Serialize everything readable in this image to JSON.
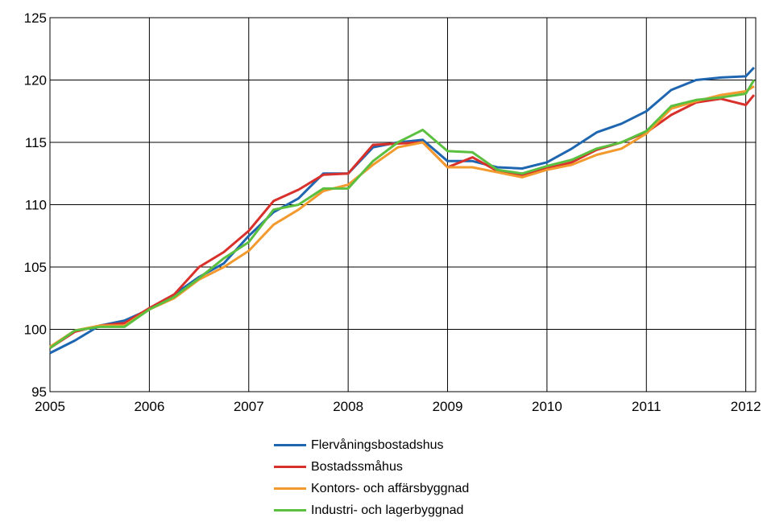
{
  "chart_data": {
    "type": "line",
    "title": "",
    "xlabel": "",
    "ylabel": "",
    "xlim": [
      2005,
      2012.1
    ],
    "ylim": [
      95,
      125
    ],
    "x_ticks": [
      "2005",
      "2006",
      "2007",
      "2008",
      "2009",
      "2010",
      "2011",
      "2012"
    ],
    "y_ticks": [
      "95",
      "100",
      "105",
      "110",
      "115",
      "120",
      "125"
    ],
    "grid": true,
    "legend_position": "bottom",
    "series": [
      {
        "name": "Flervåningsbostadshus",
        "color": "#1f66b0",
        "points": [
          [
            2005.0,
            98.1
          ],
          [
            2005.25,
            99.1
          ],
          [
            2005.5,
            100.3
          ],
          [
            2005.75,
            100.7
          ],
          [
            2006.0,
            101.6
          ],
          [
            2006.25,
            102.8
          ],
          [
            2006.5,
            104.2
          ],
          [
            2006.75,
            105.3
          ],
          [
            2007.0,
            107.5
          ],
          [
            2007.25,
            109.4
          ],
          [
            2007.5,
            110.5
          ],
          [
            2007.75,
            112.5
          ],
          [
            2008.0,
            112.5
          ],
          [
            2008.25,
            114.6
          ],
          [
            2008.5,
            115.0
          ],
          [
            2008.75,
            115.2
          ],
          [
            2009.0,
            113.5
          ],
          [
            2009.25,
            113.5
          ],
          [
            2009.5,
            113.0
          ],
          [
            2009.75,
            112.9
          ],
          [
            2010.0,
            113.4
          ],
          [
            2010.25,
            114.5
          ],
          [
            2010.5,
            115.8
          ],
          [
            2010.75,
            116.5
          ],
          [
            2011.0,
            117.5
          ],
          [
            2011.25,
            119.2
          ],
          [
            2011.5,
            120.0
          ],
          [
            2011.75,
            120.2
          ],
          [
            2012.0,
            120.3
          ],
          [
            2012.083,
            121.0
          ]
        ]
      },
      {
        "name": "Bostadssmåhus",
        "color": "#d8312c",
        "points": [
          [
            2005.0,
            98.5
          ],
          [
            2005.25,
            99.8
          ],
          [
            2005.5,
            100.3
          ],
          [
            2005.75,
            100.5
          ],
          [
            2006.0,
            101.7
          ],
          [
            2006.25,
            102.8
          ],
          [
            2006.5,
            105.0
          ],
          [
            2006.75,
            106.2
          ],
          [
            2007.0,
            107.9
          ],
          [
            2007.25,
            110.3
          ],
          [
            2007.5,
            111.2
          ],
          [
            2007.75,
            112.4
          ],
          [
            2008.0,
            112.5
          ],
          [
            2008.25,
            114.8
          ],
          [
            2008.5,
            114.9
          ],
          [
            2008.75,
            115.0
          ],
          [
            2009.0,
            113.0
          ],
          [
            2009.25,
            113.8
          ],
          [
            2009.5,
            112.7
          ],
          [
            2009.75,
            112.4
          ],
          [
            2010.0,
            112.9
          ],
          [
            2010.25,
            113.4
          ],
          [
            2010.5,
            114.4
          ],
          [
            2010.75,
            115.0
          ],
          [
            2011.0,
            115.8
          ],
          [
            2011.25,
            117.2
          ],
          [
            2011.5,
            118.2
          ],
          [
            2011.75,
            118.5
          ],
          [
            2012.0,
            118.0
          ],
          [
            2012.083,
            118.8
          ]
        ]
      },
      {
        "name": "Kontors- och affärsbyggnad",
        "color": "#f39a2e",
        "points": [
          [
            2005.0,
            98.6
          ],
          [
            2005.25,
            99.9
          ],
          [
            2005.5,
            100.3
          ],
          [
            2005.75,
            100.3
          ],
          [
            2006.0,
            101.6
          ],
          [
            2006.25,
            102.5
          ],
          [
            2006.5,
            104.0
          ],
          [
            2006.75,
            105.0
          ],
          [
            2007.0,
            106.3
          ],
          [
            2007.25,
            108.4
          ],
          [
            2007.5,
            109.6
          ],
          [
            2007.75,
            111.1
          ],
          [
            2008.0,
            111.6
          ],
          [
            2008.25,
            113.2
          ],
          [
            2008.5,
            114.6
          ],
          [
            2008.75,
            115.0
          ],
          [
            2009.0,
            113.0
          ],
          [
            2009.25,
            113.0
          ],
          [
            2009.5,
            112.6
          ],
          [
            2009.75,
            112.2
          ],
          [
            2010.0,
            112.8
          ],
          [
            2010.25,
            113.2
          ],
          [
            2010.5,
            114.0
          ],
          [
            2010.75,
            114.5
          ],
          [
            2011.0,
            115.7
          ],
          [
            2011.25,
            117.7
          ],
          [
            2011.5,
            118.3
          ],
          [
            2011.75,
            118.8
          ],
          [
            2012.0,
            119.1
          ],
          [
            2012.083,
            119.5
          ]
        ]
      },
      {
        "name": "Industri- och lagerbyggnad",
        "color": "#5bbf3f",
        "points": [
          [
            2005.0,
            98.5
          ],
          [
            2005.25,
            99.9
          ],
          [
            2005.5,
            100.2
          ],
          [
            2005.75,
            100.2
          ],
          [
            2006.0,
            101.6
          ],
          [
            2006.25,
            102.6
          ],
          [
            2006.5,
            104.1
          ],
          [
            2006.75,
            105.7
          ],
          [
            2007.0,
            107.0
          ],
          [
            2007.25,
            109.6
          ],
          [
            2007.5,
            110.0
          ],
          [
            2007.75,
            111.3
          ],
          [
            2008.0,
            111.3
          ],
          [
            2008.25,
            113.5
          ],
          [
            2008.5,
            115.0
          ],
          [
            2008.75,
            116.0
          ],
          [
            2009.0,
            114.3
          ],
          [
            2009.25,
            114.2
          ],
          [
            2009.5,
            112.8
          ],
          [
            2009.75,
            112.5
          ],
          [
            2010.0,
            113.1
          ],
          [
            2010.25,
            113.6
          ],
          [
            2010.5,
            114.5
          ],
          [
            2010.75,
            115.0
          ],
          [
            2011.0,
            115.9
          ],
          [
            2011.25,
            117.9
          ],
          [
            2011.5,
            118.4
          ],
          [
            2011.75,
            118.6
          ],
          [
            2012.0,
            118.9
          ],
          [
            2012.083,
            120.0
          ]
        ]
      }
    ]
  }
}
